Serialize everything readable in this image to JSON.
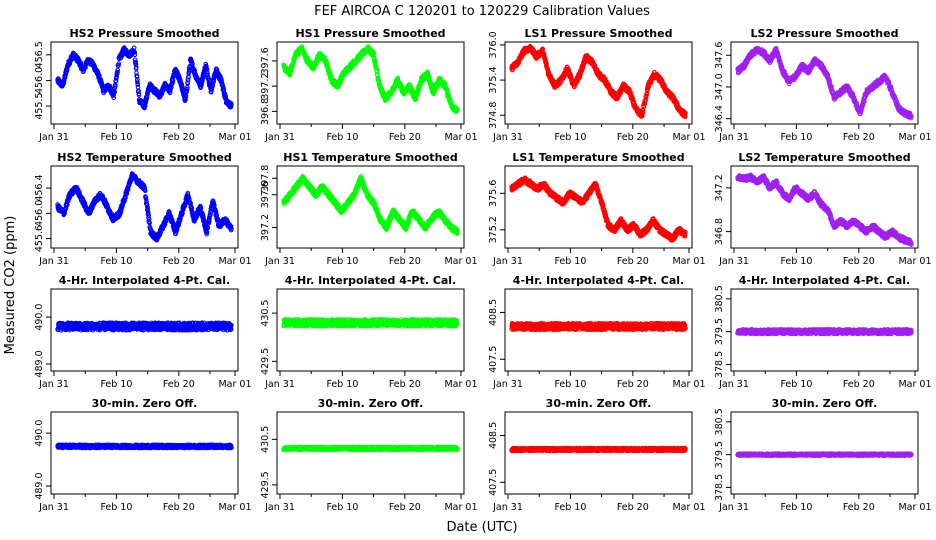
{
  "figure": {
    "title": "FEF   AIRCOA C   120201 to 120229   Calibration Values",
    "xlabel": "Date (UTC)",
    "ylabel": "Measured CO2 (ppm)"
  },
  "colors": {
    "HS2": "#0000ff",
    "HS1": "#00ff00",
    "LS1": "#ff0000",
    "LS2": "#a020f0"
  },
  "chart_data": [
    {
      "type": "scatter",
      "title": "HS2 Pressure Smoothed",
      "series": "HS2",
      "xlim": [
        0,
        29
      ],
      "ylim": [
        455.15,
        456.75
      ],
      "yticks": [
        "455.5",
        "456.0",
        "456.5"
      ],
      "ytick_values": [
        455.5,
        456.0,
        456.5
      ],
      "xticks": [
        "Jan 31",
        "Feb 10",
        "Feb 20",
        "Mar 01"
      ],
      "xtick_values": [
        0,
        10,
        20,
        29
      ],
      "values": [
        456.0,
        455.9,
        456.3,
        456.5,
        456.4,
        456.2,
        456.4,
        456.3,
        456.1,
        455.8,
        455.9,
        455.7,
        456.4,
        456.6,
        456.5,
        456.6,
        455.6,
        455.5,
        455.9,
        455.8,
        455.7,
        455.9,
        455.8,
        456.2,
        456.0,
        455.6,
        456.4,
        456.1,
        455.9,
        456.3,
        455.8,
        456.2,
        456.0,
        455.6,
        455.5
      ]
    },
    {
      "type": "scatter",
      "title": "HS1 Pressure Smoothed",
      "series": "HS1",
      "xlim": [
        0,
        29
      ],
      "ylim": [
        396.6,
        397.9
      ],
      "yticks": [
        "396.8",
        "397.2",
        "397.6"
      ],
      "ytick_values": [
        396.8,
        397.2,
        397.6
      ],
      "xticks": [
        "Jan 31",
        "Feb 10",
        "Feb 20",
        "Mar 01"
      ],
      "xtick_values": [
        0,
        10,
        20,
        29
      ],
      "values": [
        397.5,
        397.4,
        397.7,
        397.8,
        397.6,
        397.5,
        397.7,
        397.6,
        397.3,
        397.2,
        397.4,
        397.5,
        397.6,
        397.7,
        397.8,
        397.7,
        397.2,
        397.0,
        397.1,
        397.3,
        397.1,
        397.2,
        397.0,
        397.3,
        397.4,
        397.1,
        397.3,
        397.2,
        396.9,
        396.8
      ]
    },
    {
      "type": "scatter",
      "title": "LS1 Pressure Smoothed",
      "series": "LS1",
      "xlim": [
        0,
        29
      ],
      "ylim": [
        374.65,
        376.05
      ],
      "yticks": [
        "374.8",
        "375.4",
        "376.0"
      ],
      "ytick_values": [
        374.8,
        375.4,
        376.0
      ],
      "xticks": [
        "Jan 31",
        "Feb 10",
        "Feb 20",
        "Mar 01"
      ],
      "xtick_values": [
        0,
        10,
        20,
        29
      ],
      "values": [
        375.6,
        375.7,
        375.9,
        375.95,
        375.8,
        375.9,
        375.5,
        375.3,
        375.4,
        375.6,
        375.3,
        375.5,
        375.8,
        375.7,
        375.5,
        375.4,
        375.2,
        375.1,
        375.3,
        375.2,
        374.9,
        374.8,
        375.3,
        375.5,
        375.4,
        375.2,
        375.1,
        374.9,
        374.8
      ]
    },
    {
      "type": "scatter",
      "title": "LS2 Pressure Smoothed",
      "series": "LS2",
      "xlim": [
        0,
        29
      ],
      "ylim": [
        346.3,
        347.85
      ],
      "yticks": [
        "346.4",
        "347.0",
        "347.6"
      ],
      "ytick_values": [
        346.4,
        347.0,
        347.6
      ],
      "xticks": [
        "Jan 31",
        "Feb 10",
        "Feb 20",
        "Mar 01"
      ],
      "xtick_values": [
        0,
        10,
        20,
        29
      ],
      "values": [
        347.3,
        347.4,
        347.6,
        347.7,
        347.65,
        347.5,
        347.7,
        347.3,
        347.1,
        347.2,
        347.4,
        347.3,
        347.5,
        347.4,
        347.2,
        346.8,
        346.9,
        347.0,
        346.8,
        346.5,
        346.9,
        347.0,
        347.1,
        347.2,
        346.9,
        346.6,
        346.5,
        346.45
      ]
    },
    {
      "type": "scatter",
      "title": "HS2 Temperature Smoothed",
      "series": "HS2",
      "xlim": [
        0,
        29
      ],
      "ylim": [
        455.45,
        456.75
      ],
      "yticks": [
        "455.6",
        "456.0",
        "456.4"
      ],
      "ytick_values": [
        455.6,
        456.0,
        456.4
      ],
      "xticks": [
        "Jan 31",
        "Feb 10",
        "Feb 20",
        "Mar 01"
      ],
      "xtick_values": [
        0,
        10,
        20,
        29
      ],
      "values": [
        456.1,
        456.0,
        456.3,
        456.4,
        456.2,
        456.0,
        456.2,
        456.3,
        456.1,
        455.9,
        456.0,
        456.3,
        456.6,
        456.5,
        456.4,
        455.7,
        455.6,
        455.8,
        456.0,
        455.7,
        456.0,
        456.3,
        455.9,
        456.1,
        455.7,
        456.2,
        455.8,
        455.9,
        455.75
      ]
    },
    {
      "type": "scatter",
      "title": "HS1 Temperature Smoothed",
      "series": "HS1",
      "xlim": [
        0,
        29
      ],
      "ylim": [
        396.95,
        397.95
      ],
      "yticks": [
        "397.2",
        "397.6",
        "397.8"
      ],
      "ytick_values": [
        397.2,
        397.6,
        397.8
      ],
      "xticks": [
        "Jan 31",
        "Feb 10",
        "Feb 20",
        "Mar 01"
      ],
      "xtick_values": [
        0,
        10,
        20,
        29
      ],
      "values": [
        397.5,
        397.6,
        397.7,
        397.8,
        397.7,
        397.6,
        397.7,
        397.6,
        397.5,
        397.4,
        397.5,
        397.6,
        397.8,
        397.6,
        397.5,
        397.3,
        397.2,
        397.4,
        397.3,
        397.2,
        397.4,
        397.3,
        397.2,
        397.3,
        397.4,
        397.3,
        397.2,
        397.15
      ]
    },
    {
      "type": "scatter",
      "title": "LS1 Temperature Smoothed",
      "series": "LS1",
      "xlim": [
        0,
        29
      ],
      "ylim": [
        375.0,
        375.9
      ],
      "yticks": [
        "375.2",
        "375.6"
      ],
      "ytick_values": [
        375.2,
        375.6
      ],
      "xticks": [
        "Jan 31",
        "Feb 10",
        "Feb 20",
        "Mar 01"
      ],
      "xtick_values": [
        0,
        10,
        20,
        29
      ],
      "values": [
        375.65,
        375.7,
        375.75,
        375.7,
        375.65,
        375.7,
        375.6,
        375.55,
        375.5,
        375.6,
        375.55,
        375.5,
        375.6,
        375.7,
        375.5,
        375.25,
        375.2,
        375.3,
        375.2,
        375.25,
        375.15,
        375.2,
        375.3,
        375.2,
        375.15,
        375.1,
        375.2,
        375.15
      ]
    },
    {
      "type": "scatter",
      "title": "LS2 Temperature Smoothed",
      "series": "LS2",
      "xlim": [
        0,
        29
      ],
      "ylim": [
        346.65,
        347.4
      ],
      "yticks": [
        "346.8",
        "347.2"
      ],
      "ytick_values": [
        346.8,
        347.2
      ],
      "xticks": [
        "Jan 31",
        "Feb 10",
        "Feb 20",
        "Mar 01"
      ],
      "xtick_values": [
        0,
        10,
        20,
        29
      ],
      "values": [
        347.3,
        347.28,
        347.3,
        347.25,
        347.3,
        347.2,
        347.25,
        347.15,
        347.1,
        347.2,
        347.15,
        347.1,
        347.15,
        347.05,
        347.0,
        346.85,
        346.9,
        346.85,
        346.9,
        346.85,
        346.8,
        346.85,
        346.8,
        346.75,
        346.8,
        346.75,
        346.72,
        346.7
      ]
    },
    {
      "type": "scatter",
      "title": "4-Hr. Interpolated 4-Pt. Cal.",
      "series": "HS2",
      "xlim": [
        0,
        29
      ],
      "ylim": [
        488.85,
        490.6
      ],
      "yticks": [
        "489.0",
        "490.0"
      ],
      "ytick_values": [
        489.0,
        490.0
      ],
      "xticks": [
        "Jan 31",
        "Feb 10",
        "Feb 20",
        "Mar 01"
      ],
      "xtick_values": [
        0,
        10,
        20,
        29
      ],
      "level": 489.8,
      "spread": 0.08
    },
    {
      "type": "scatter",
      "title": "4-Hr. Interpolated 4-Pt. Cal.",
      "series": "HS1",
      "xlim": [
        0,
        29
      ],
      "ylim": [
        429.3,
        431.0
      ],
      "yticks": [
        "429.5",
        "430.5"
      ],
      "ytick_values": [
        429.5,
        430.5
      ],
      "xticks": [
        "Jan 31",
        "Feb 10",
        "Feb 20",
        "Mar 01"
      ],
      "xtick_values": [
        0,
        10,
        20,
        29
      ],
      "level": 430.3,
      "spread": 0.07
    },
    {
      "type": "scatter",
      "title": "4-Hr. Interpolated 4-Pt. Cal.",
      "series": "LS1",
      "xlim": [
        0,
        29
      ],
      "ylim": [
        407.25,
        409.0
      ],
      "yticks": [
        "407.5",
        "408.5"
      ],
      "ytick_values": [
        407.5,
        408.5
      ],
      "xticks": [
        "Jan 31",
        "Feb 10",
        "Feb 20",
        "Mar 01"
      ],
      "xtick_values": [
        0,
        10,
        20,
        29
      ],
      "level": 408.2,
      "spread": 0.07
    },
    {
      "type": "scatter",
      "title": "4-Hr. Interpolated 4-Pt. Cal.",
      "series": "LS2",
      "xlim": [
        0,
        29
      ],
      "ylim": [
        378.3,
        380.8
      ],
      "yticks": [
        "378.5",
        "379.5",
        "380.5"
      ],
      "ytick_values": [
        378.5,
        379.5,
        380.5
      ],
      "xticks": [
        "Jan 31",
        "Feb 10",
        "Feb 20",
        "Mar 01"
      ],
      "xtick_values": [
        0,
        10,
        20,
        29
      ],
      "level": 379.5,
      "spread": 0.07
    },
    {
      "type": "scatter",
      "title": "30-min. Zero Off.",
      "series": "HS2",
      "xlim": [
        0,
        29
      ],
      "ylim": [
        488.85,
        490.4
      ],
      "yticks": [
        "489.0",
        "490.0"
      ],
      "ytick_values": [
        489.0,
        490.0
      ],
      "xticks": [
        "Jan 31",
        "Feb 10",
        "Feb 20",
        "Mar 01"
      ],
      "xtick_values": [
        0,
        10,
        20,
        29
      ],
      "level": 489.75,
      "spread": 0.03
    },
    {
      "type": "scatter",
      "title": "30-min. Zero Off.",
      "series": "HS1",
      "xlim": [
        0,
        29
      ],
      "ylim": [
        429.3,
        431.1
      ],
      "yticks": [
        "429.5",
        "430.5"
      ],
      "ytick_values": [
        429.5,
        430.5
      ],
      "xticks": [
        "Jan 31",
        "Feb 10",
        "Feb 20",
        "Mar 01"
      ],
      "xtick_values": [
        0,
        10,
        20,
        29
      ],
      "level": 430.3,
      "spread": 0.03
    },
    {
      "type": "scatter",
      "title": "30-min. Zero Off.",
      "series": "LS1",
      "xlim": [
        0,
        29
      ],
      "ylim": [
        407.25,
        409.0
      ],
      "yticks": [
        "407.5",
        "408.5"
      ],
      "ytick_values": [
        407.5,
        408.5
      ],
      "xticks": [
        "Jan 31",
        "Feb 10",
        "Feb 20",
        "Mar 01"
      ],
      "xtick_values": [
        0,
        10,
        20,
        29
      ],
      "level": 408.2,
      "spread": 0.03
    },
    {
      "type": "scatter",
      "title": "30-min. Zero Off.",
      "series": "LS2",
      "xlim": [
        0,
        29
      ],
      "ylim": [
        378.3,
        380.8
      ],
      "yticks": [
        "378.5",
        "379.5",
        "380.5"
      ],
      "ytick_values": [
        378.5,
        379.5,
        380.5
      ],
      "xticks": [
        "Jan 31",
        "Feb 10",
        "Feb 20",
        "Mar 01"
      ],
      "xtick_values": [
        0,
        10,
        20,
        29
      ],
      "level": 379.5,
      "spread": 0.03
    }
  ]
}
